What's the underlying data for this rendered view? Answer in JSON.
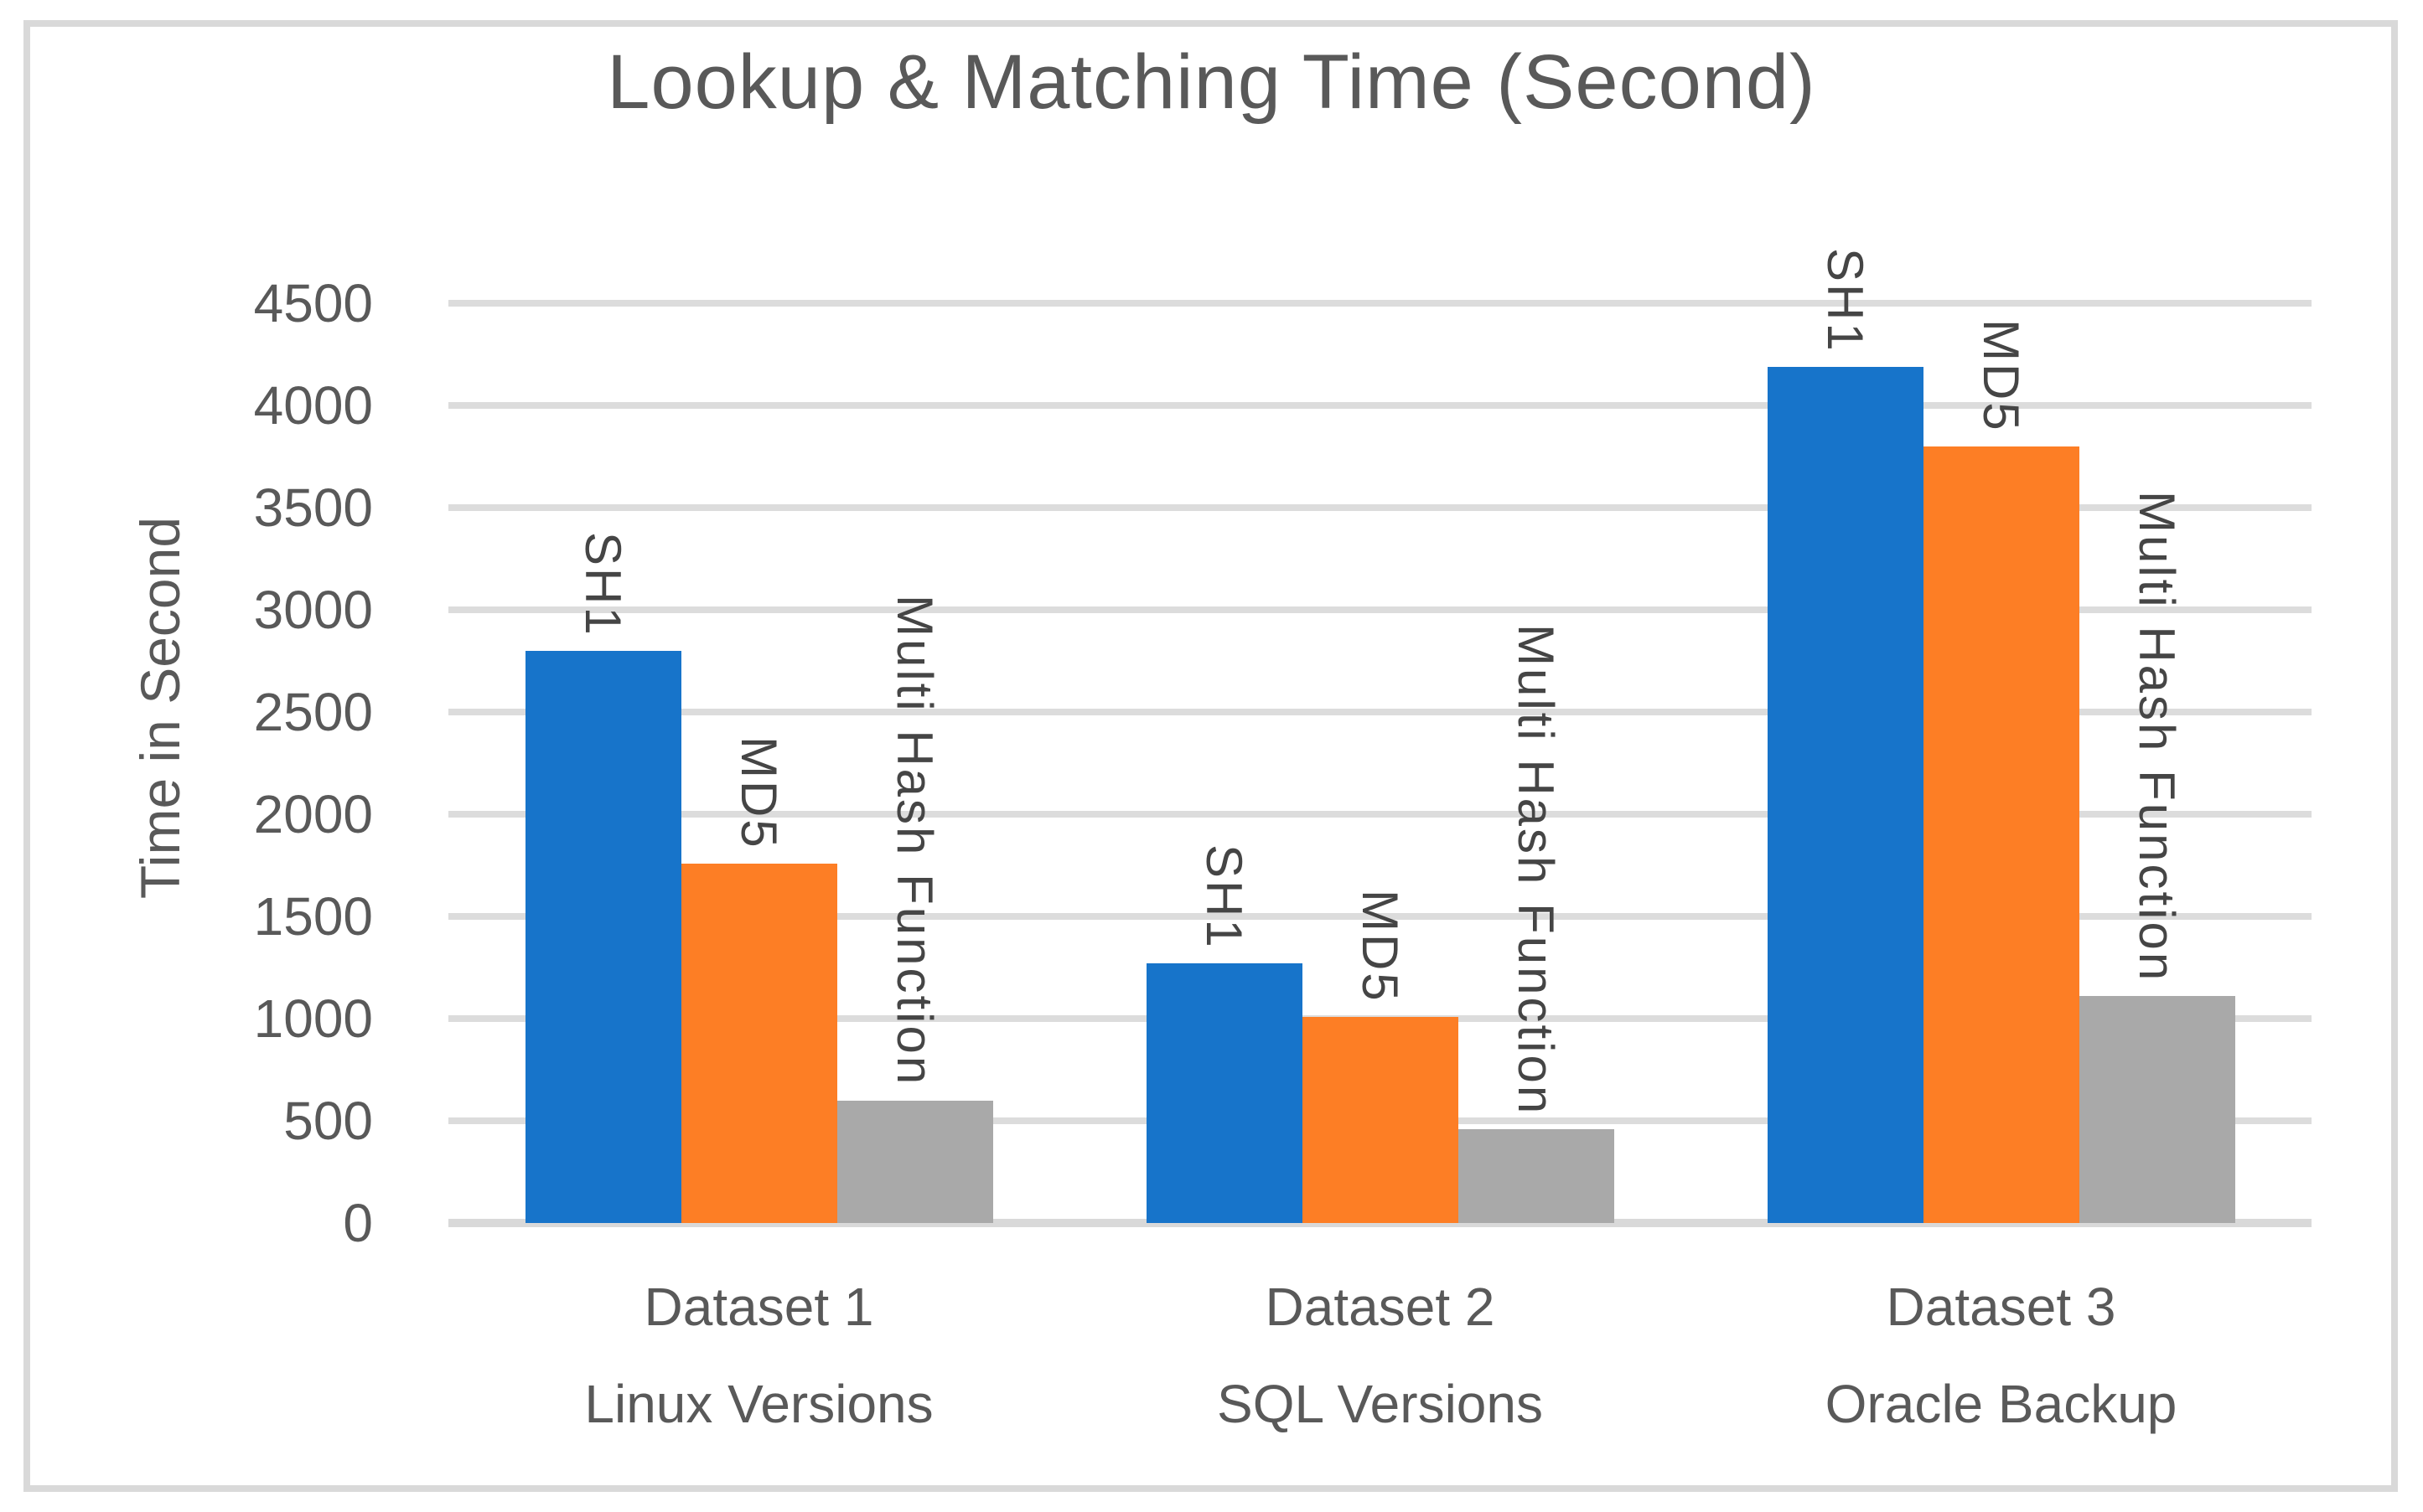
{
  "chart": {
    "title": "Lookup & Matching Time (Second)",
    "y_axis_title": "Time in Second"
  },
  "chart_data": {
    "type": "bar",
    "title": "Lookup & Matching Time (Second)",
    "xlabel": "",
    "ylabel": "Time in Second",
    "ylim": [
      0,
      4500
    ],
    "ytick_step": 500,
    "ytick_values": [
      0,
      500,
      1000,
      1500,
      2000,
      2500,
      3000,
      3500,
      4000,
      4500
    ],
    "grid": true,
    "legend_position": "none",
    "bar_label_style": "series name rotated 90deg above each bar",
    "categories": [
      {
        "line1": "Dataset 1",
        "line2": "Linux Versions"
      },
      {
        "line1": "Dataset 2",
        "line2": "SQL Versions"
      },
      {
        "line1": "Dataset 3",
        "line2": "Oracle Backup"
      }
    ],
    "series": [
      {
        "name": "SH1",
        "color": "#1774CA",
        "values": [
          2800,
          1270,
          4190
        ]
      },
      {
        "name": "MD5",
        "color": "#FD7E25",
        "values": [
          1760,
          1010,
          3800
        ]
      },
      {
        "name": "Multi Hash Function",
        "color": "#A9A9A9",
        "values": [
          600,
          460,
          1110
        ]
      }
    ],
    "colors": {
      "gridline": "#DCDCDC",
      "axis_line": "#D9D9D9",
      "text": "#595959",
      "bar_label_text": "#454545",
      "chart_border": "#D9D9D9",
      "background": "#FFFFFF"
    }
  }
}
